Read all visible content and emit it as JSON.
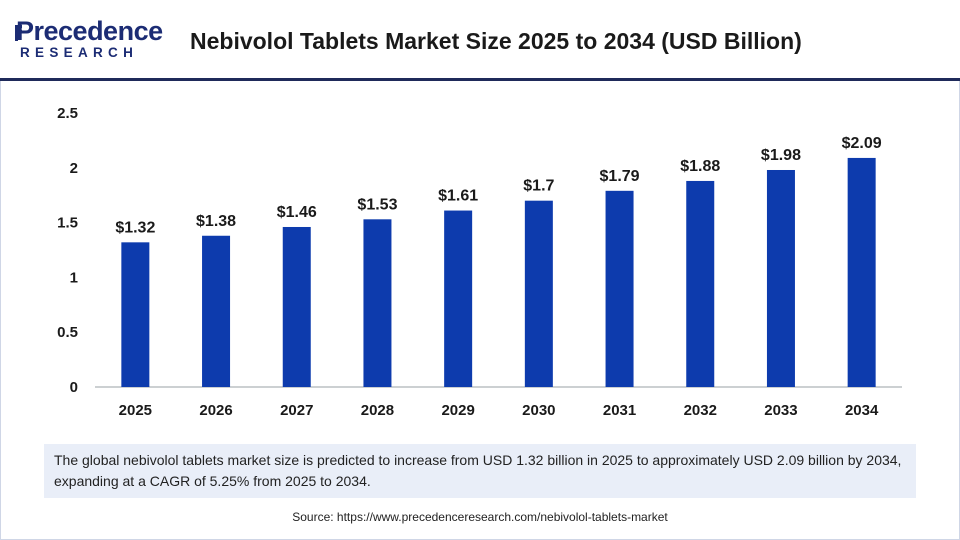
{
  "brand": {
    "name": "Precedence",
    "sub": "RESEARCH"
  },
  "chart_data": {
    "type": "bar",
    "title": "Nebivolol Tablets Market Size 2025 to 2034 (USD Billion)",
    "categories": [
      "2025",
      "2026",
      "2027",
      "2028",
      "2029",
      "2030",
      "2031",
      "2032",
      "2033",
      "2034"
    ],
    "values": [
      1.32,
      1.38,
      1.46,
      1.53,
      1.61,
      1.7,
      1.79,
      1.88,
      1.98,
      2.09
    ],
    "data_labels": [
      "$1.32",
      "$1.38",
      "$1.46",
      "$1.53",
      "$1.61",
      "$1.7",
      "$1.79",
      "$1.88",
      "$1.98",
      "$2.09"
    ],
    "yticks": [
      0,
      0.5,
      1,
      1.5,
      2,
      2.5
    ],
    "ytick_labels": [
      "0",
      "0.5",
      "1",
      "1.5",
      "2",
      "2.5"
    ],
    "ylim": [
      0,
      2.5
    ],
    "xlabel": "",
    "ylabel": "",
    "bar_color": "#0d3bad",
    "grid": false
  },
  "caption": "The global nebivolol tablets market size is predicted to increase from USD 1.32 billion in 2025 to approximately USD 2.09 billion by 2034, expanding at a CAGR of 5.25% from 2025 to 2034.",
  "source": "Source: https://www.precedenceresearch.com/nebivolol-tablets-market"
}
